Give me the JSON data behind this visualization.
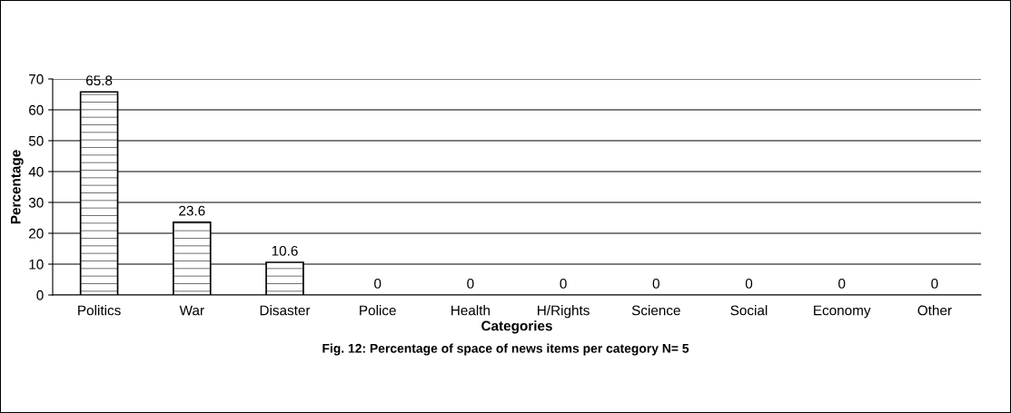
{
  "chart_data": {
    "type": "bar",
    "title": "Fig. 12: Percentage of space of news items per category N= 5",
    "xlabel": "Categories",
    "ylabel": "Percentage",
    "categories": [
      "Politics",
      "War",
      "Disaster",
      "Police",
      "Health",
      "H/Rights",
      "Science",
      "Social",
      "Economy",
      "Other"
    ],
    "values": [
      65.8,
      23.6,
      10.6,
      0,
      0,
      0,
      0,
      0,
      0,
      0
    ],
    "color": "#000000",
    "ylim": [
      0,
      70
    ],
    "yticks": [
      0,
      10,
      20,
      30,
      40,
      50,
      60,
      70
    ],
    "grid": "y",
    "data_labels": true,
    "legend": false
  }
}
